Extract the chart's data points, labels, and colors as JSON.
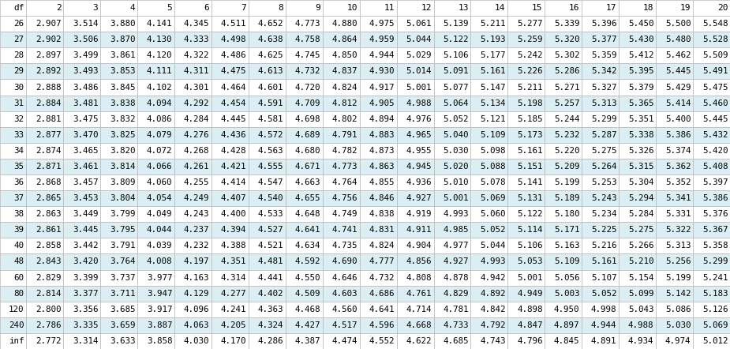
{
  "columns": [
    "df",
    "2",
    "3",
    "4",
    "5",
    "6",
    "7",
    "8",
    "9",
    "10",
    "11",
    "12",
    "13",
    "14",
    "15",
    "16",
    "17",
    "18",
    "19",
    "20"
  ],
  "rows": [
    [
      "26",
      "2.907",
      "3.514",
      "3.880",
      "4.141",
      "4.345",
      "4.511",
      "4.652",
      "4.773",
      "4.880",
      "4.975",
      "5.061",
      "5.139",
      "5.211",
      "5.277",
      "5.339",
      "5.396",
      "5.450",
      "5.500",
      "5.548"
    ],
    [
      "27",
      "2.902",
      "3.506",
      "3.870",
      "4.130",
      "4.333",
      "4.498",
      "4.638",
      "4.758",
      "4.864",
      "4.959",
      "5.044",
      "5.122",
      "5.193",
      "5.259",
      "5.320",
      "5.377",
      "5.430",
      "5.480",
      "5.528"
    ],
    [
      "28",
      "2.897",
      "3.499",
      "3.861",
      "4.120",
      "4.322",
      "4.486",
      "4.625",
      "4.745",
      "4.850",
      "4.944",
      "5.029",
      "5.106",
      "5.177",
      "5.242",
      "5.302",
      "5.359",
      "5.412",
      "5.462",
      "5.509"
    ],
    [
      "29",
      "2.892",
      "3.493",
      "3.853",
      "4.111",
      "4.311",
      "4.475",
      "4.613",
      "4.732",
      "4.837",
      "4.930",
      "5.014",
      "5.091",
      "5.161",
      "5.226",
      "5.286",
      "5.342",
      "5.395",
      "5.445",
      "5.491"
    ],
    [
      "30",
      "2.888",
      "3.486",
      "3.845",
      "4.102",
      "4.301",
      "4.464",
      "4.601",
      "4.720",
      "4.824",
      "4.917",
      "5.001",
      "5.077",
      "5.147",
      "5.211",
      "5.271",
      "5.327",
      "5.379",
      "5.429",
      "5.475"
    ],
    [
      "31",
      "2.884",
      "3.481",
      "3.838",
      "4.094",
      "4.292",
      "4.454",
      "4.591",
      "4.709",
      "4.812",
      "4.905",
      "4.988",
      "5.064",
      "5.134",
      "5.198",
      "5.257",
      "5.313",
      "5.365",
      "5.414",
      "5.460"
    ],
    [
      "32",
      "2.881",
      "3.475",
      "3.832",
      "4.086",
      "4.284",
      "4.445",
      "4.581",
      "4.698",
      "4.802",
      "4.894",
      "4.976",
      "5.052",
      "5.121",
      "5.185",
      "5.244",
      "5.299",
      "5.351",
      "5.400",
      "5.445"
    ],
    [
      "33",
      "2.877",
      "3.470",
      "3.825",
      "4.079",
      "4.276",
      "4.436",
      "4.572",
      "4.689",
      "4.791",
      "4.883",
      "4.965",
      "5.040",
      "5.109",
      "5.173",
      "5.232",
      "5.287",
      "5.338",
      "5.386",
      "5.432"
    ],
    [
      "34",
      "2.874",
      "3.465",
      "3.820",
      "4.072",
      "4.268",
      "4.428",
      "4.563",
      "4.680",
      "4.782",
      "4.873",
      "4.955",
      "5.030",
      "5.098",
      "5.161",
      "5.220",
      "5.275",
      "5.326",
      "5.374",
      "5.420"
    ],
    [
      "35",
      "2.871",
      "3.461",
      "3.814",
      "4.066",
      "4.261",
      "4.421",
      "4.555",
      "4.671",
      "4.773",
      "4.863",
      "4.945",
      "5.020",
      "5.088",
      "5.151",
      "5.209",
      "5.264",
      "5.315",
      "5.362",
      "5.408"
    ],
    [
      "36",
      "2.868",
      "3.457",
      "3.809",
      "4.060",
      "4.255",
      "4.414",
      "4.547",
      "4.663",
      "4.764",
      "4.855",
      "4.936",
      "5.010",
      "5.078",
      "5.141",
      "5.199",
      "5.253",
      "5.304",
      "5.352",
      "5.397"
    ],
    [
      "37",
      "2.865",
      "3.453",
      "3.804",
      "4.054",
      "4.249",
      "4.407",
      "4.540",
      "4.655",
      "4.756",
      "4.846",
      "4.927",
      "5.001",
      "5.069",
      "5.131",
      "5.189",
      "5.243",
      "5.294",
      "5.341",
      "5.386"
    ],
    [
      "38",
      "2.863",
      "3.449",
      "3.799",
      "4.049",
      "4.243",
      "4.400",
      "4.533",
      "4.648",
      "4.749",
      "4.838",
      "4.919",
      "4.993",
      "5.060",
      "5.122",
      "5.180",
      "5.234",
      "5.284",
      "5.331",
      "5.376"
    ],
    [
      "39",
      "2.861",
      "3.445",
      "3.795",
      "4.044",
      "4.237",
      "4.394",
      "4.527",
      "4.641",
      "4.741",
      "4.831",
      "4.911",
      "4.985",
      "5.052",
      "5.114",
      "5.171",
      "5.225",
      "5.275",
      "5.322",
      "5.367"
    ],
    [
      "40",
      "2.858",
      "3.442",
      "3.791",
      "4.039",
      "4.232",
      "4.388",
      "4.521",
      "4.634",
      "4.735",
      "4.824",
      "4.904",
      "4.977",
      "5.044",
      "5.106",
      "5.163",
      "5.216",
      "5.266",
      "5.313",
      "5.358"
    ],
    [
      "48",
      "2.843",
      "3.420",
      "3.764",
      "4.008",
      "4.197",
      "4.351",
      "4.481",
      "4.592",
      "4.690",
      "4.777",
      "4.856",
      "4.927",
      "4.993",
      "5.053",
      "5.109",
      "5.161",
      "5.210",
      "5.256",
      "5.299"
    ],
    [
      "60",
      "2.829",
      "3.399",
      "3.737",
      "3.977",
      "4.163",
      "4.314",
      "4.441",
      "4.550",
      "4.646",
      "4.732",
      "4.808",
      "4.878",
      "4.942",
      "5.001",
      "5.056",
      "5.107",
      "5.154",
      "5.199",
      "5.241"
    ],
    [
      "80",
      "2.814",
      "3.377",
      "3.711",
      "3.947",
      "4.129",
      "4.277",
      "4.402",
      "4.509",
      "4.603",
      "4.686",
      "4.761",
      "4.829",
      "4.892",
      "4.949",
      "5.003",
      "5.052",
      "5.099",
      "5.142",
      "5.183"
    ],
    [
      "120",
      "2.800",
      "3.356",
      "3.685",
      "3.917",
      "4.096",
      "4.241",
      "4.363",
      "4.468",
      "4.560",
      "4.641",
      "4.714",
      "4.781",
      "4.842",
      "4.898",
      "4.950",
      "4.998",
      "5.043",
      "5.086",
      "5.126"
    ],
    [
      "240",
      "2.786",
      "3.335",
      "3.659",
      "3.887",
      "4.063",
      "4.205",
      "4.324",
      "4.427",
      "4.517",
      "4.596",
      "4.668",
      "4.733",
      "4.792",
      "4.847",
      "4.897",
      "4.944",
      "4.988",
      "5.030",
      "5.069"
    ],
    [
      "inf",
      "2.772",
      "3.314",
      "3.633",
      "3.858",
      "4.030",
      "4.170",
      "4.286",
      "4.387",
      "4.474",
      "4.552",
      "4.622",
      "4.685",
      "4.743",
      "4.796",
      "4.845",
      "4.891",
      "4.934",
      "4.974",
      "5.012"
    ]
  ],
  "header_bg": "#FFFFFF",
  "header_text_color": "#000000",
  "row_colors": [
    "#FFFFFF",
    "#DAEEF3"
  ],
  "text_color": "#000000",
  "grid_color": "#B8B8B8",
  "font_size": 7.8,
  "header_font_size": 8.0,
  "fig_width": 9.25,
  "fig_height": 4.42,
  "dpi": 100
}
